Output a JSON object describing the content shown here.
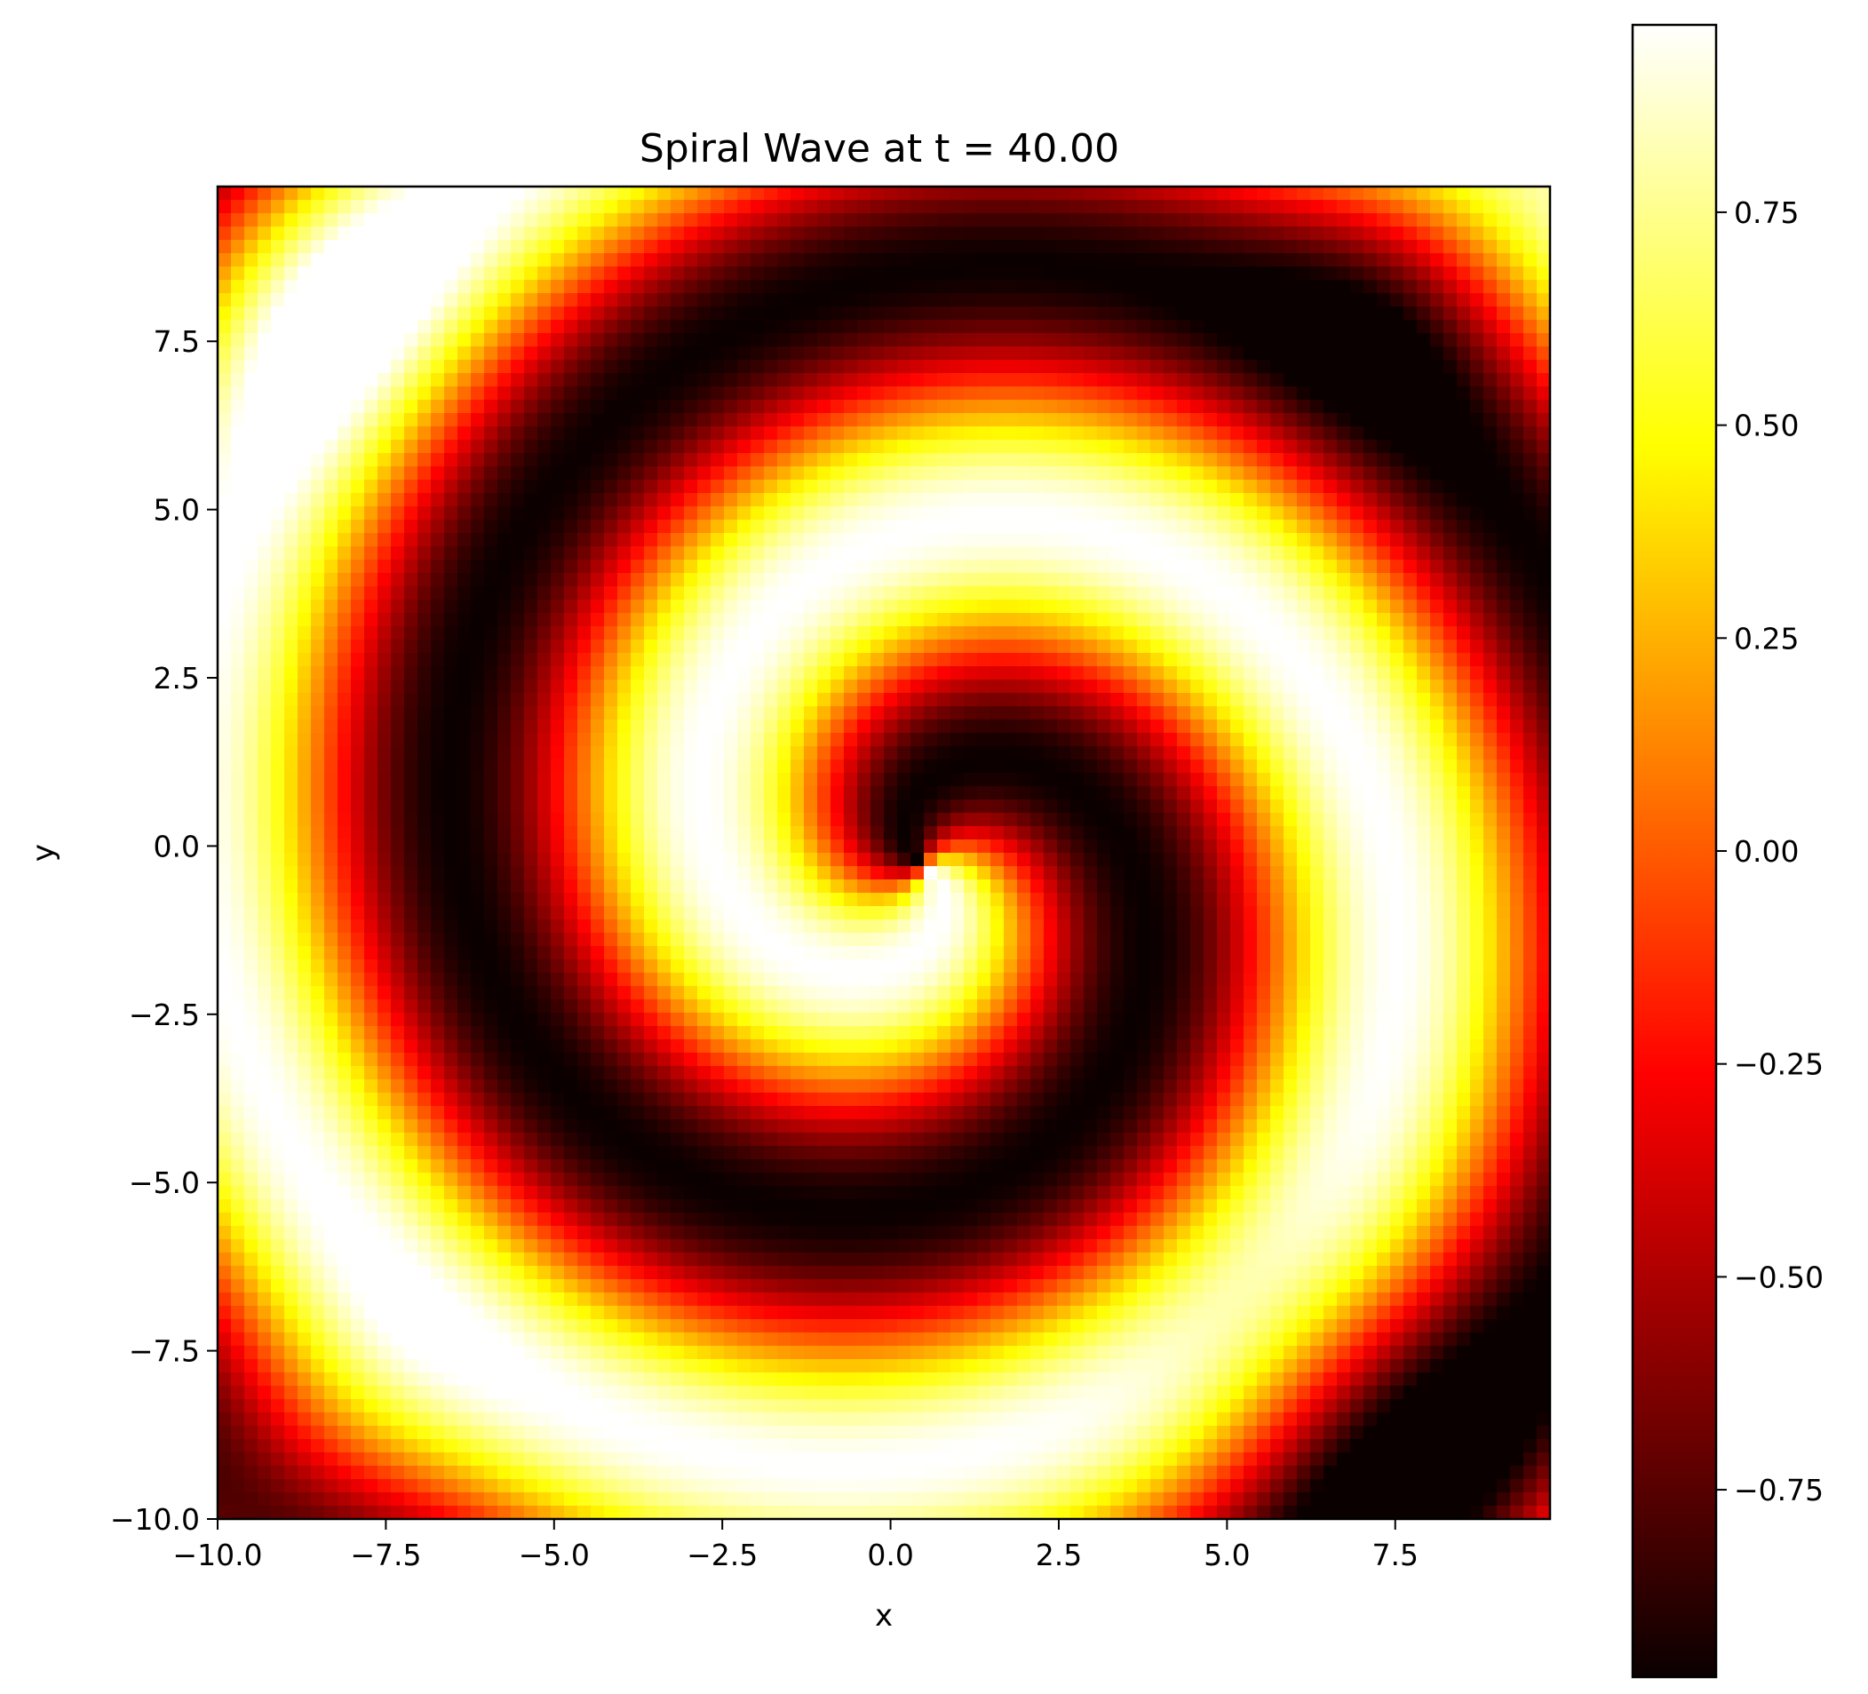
{
  "chart_data": {
    "type": "heatmap",
    "title": "Spiral Wave at t = 40.00",
    "xlabel": "x",
    "ylabel": "y",
    "xlim": [
      -10.0,
      9.8
    ],
    "ylim": [
      -10.0,
      9.8
    ],
    "grid_resolution": 100,
    "colormap": "hot",
    "colormap_stops": [
      "#0b0000",
      "#ff0000",
      "#ffff00",
      "#ffffff"
    ],
    "value_range": [
      -0.97,
      0.97
    ],
    "xticks": [
      -10.0,
      -7.5,
      -5.0,
      -2.5,
      0.0,
      2.5,
      5.0,
      7.5
    ],
    "xtick_labels": [
      "−10.0",
      "−7.5",
      "−5.0",
      "−2.5",
      "0.0",
      "2.5",
      "5.0",
      "7.5"
    ],
    "yticks": [
      -10.0,
      -7.5,
      -5.0,
      -2.5,
      0.0,
      2.5,
      5.0,
      7.5
    ],
    "ytick_labels": [
      "−10.0",
      "−7.5",
      "−5.0",
      "−2.5",
      "0.0",
      "2.5",
      "5.0",
      "7.5"
    ],
    "colorbar": {
      "ticks": [
        0.75,
        0.5,
        0.25,
        0.0,
        -0.25,
        -0.5,
        -0.75
      ],
      "tick_labels": [
        "0.75",
        "0.50",
        "0.25",
        "0.00",
        "−0.25",
        "−0.50",
        "−0.75"
      ]
    },
    "field_description": "Two-armed spiral wave centred near (0.5, 0) with alternating bright (≈+0.97) and dark (≈−0.97) bands; bright lobes in corners, dark patches at top-right and bottom-right."
  }
}
